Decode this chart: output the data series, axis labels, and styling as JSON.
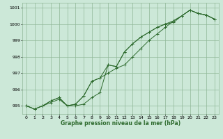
{
  "x": [
    0,
    1,
    2,
    3,
    4,
    5,
    6,
    7,
    8,
    9,
    10,
    11,
    12,
    13,
    14,
    15,
    16,
    17,
    18,
    19,
    20,
    21,
    22,
    23
  ],
  "line1": [
    995.0,
    994.8,
    995.0,
    995.2,
    995.4,
    995.0,
    995.0,
    995.1,
    995.5,
    995.8,
    997.5,
    997.4,
    998.3,
    998.8,
    999.2,
    999.5,
    999.8,
    1000.0,
    1000.1,
    1000.5,
    1000.85,
    1000.65,
    1000.55,
    1000.3
  ],
  "line2": [
    995.0,
    994.8,
    995.0,
    995.3,
    995.5,
    995.0,
    995.1,
    995.6,
    996.5,
    996.7,
    997.0,
    997.3,
    997.5,
    998.0,
    998.5,
    999.0,
    999.4,
    999.8,
    1000.2,
    1000.5,
    1000.85,
    1000.65,
    1000.55,
    1000.3
  ],
  "line3": [
    995.0,
    994.8,
    995.0,
    995.3,
    995.5,
    995.0,
    995.1,
    995.6,
    996.5,
    996.7,
    997.5,
    997.4,
    998.3,
    998.8,
    999.2,
    999.5,
    999.8,
    1000.0,
    1000.2,
    1000.5,
    1000.85,
    1000.65,
    1000.55,
    1000.3
  ],
  "line_color": "#2d6a2d",
  "bg_color": "#cce8d8",
  "grid_color": "#90b898",
  "xlabel": "Graphe pression niveau de la mer (hPa)",
  "ylim": [
    994.5,
    1001.3
  ],
  "yticks": [
    995,
    996,
    997,
    998,
    999,
    1000,
    1001
  ],
  "xlim": [
    -0.5,
    23.5
  ],
  "xticks": [
    0,
    1,
    2,
    3,
    4,
    5,
    6,
    7,
    8,
    9,
    10,
    11,
    12,
    13,
    14,
    15,
    16,
    17,
    18,
    19,
    20,
    21,
    22,
    23
  ]
}
